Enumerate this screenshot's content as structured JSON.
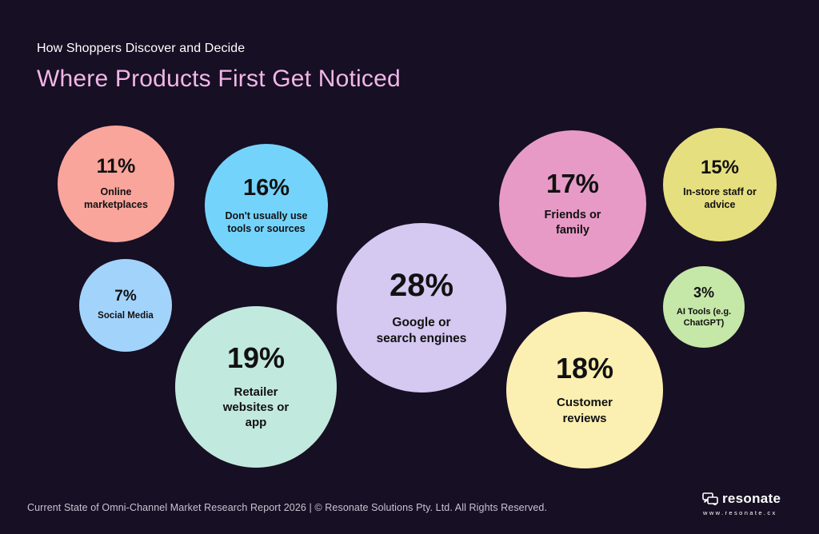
{
  "header": {
    "subtitle": "How Shoppers Discover and Decide",
    "title": "Where Products First Get Noticed"
  },
  "colors": {
    "background": "#170f24",
    "title": "#f1b6e8",
    "online_marketplaces": "#f9a59c",
    "dont_use": "#74d3fb",
    "social_media": "#a2d3fb",
    "retailer": "#c2e9dd",
    "google": "#d5c8f1",
    "friends": "#e89ac7",
    "in_store": "#e6df7f",
    "ai_tools": "#c5e7a8",
    "reviews": "#fbefb1"
  },
  "chart_data": {
    "type": "bubble",
    "title": "Where Products First Get Noticed",
    "subtitle": "How Shoppers Discover and Decide",
    "unit": "%",
    "items": [
      {
        "label": "Online marketplaces",
        "value": 11,
        "value_text": "11%",
        "label_lines": [
          "Online",
          "marketplaces"
        ],
        "color": "#f9a59c"
      },
      {
        "label": "Don't usually use tools or sources",
        "value": 16,
        "value_text": "16%",
        "label_lines": [
          "Don't usually use",
          "tools or sources"
        ],
        "color": "#74d3fb"
      },
      {
        "label": "Social Media",
        "value": 7,
        "value_text": "7%",
        "label_lines": [
          "Social Media"
        ],
        "color": "#a2d3fb"
      },
      {
        "label": "Retailer websites or app",
        "value": 19,
        "value_text": "19%",
        "label_lines": [
          "Retailer",
          "websites or",
          "app"
        ],
        "color": "#c2e9dd"
      },
      {
        "label": "Google or search engines",
        "value": 28,
        "value_text": "28%",
        "label_lines": [
          "Google or",
          "search engines"
        ],
        "color": "#d5c8f1"
      },
      {
        "label": "Friends or family",
        "value": 17,
        "value_text": "17%",
        "label_lines": [
          "Friends or",
          "family"
        ],
        "color": "#e89ac7"
      },
      {
        "label": "In-store staff or advice",
        "value": 15,
        "value_text": "15%",
        "label_lines": [
          "In-store staff or",
          "advice"
        ],
        "color": "#e6df7f"
      },
      {
        "label": "AI Tools (e.g. ChatGPT)",
        "value": 3,
        "value_text": "3%",
        "label_lines": [
          "AI Tools (e.g.",
          "ChatGPT)"
        ],
        "color": "#c5e7a8"
      },
      {
        "label": "Customer reviews",
        "value": 18,
        "value_text": "18%",
        "label_lines": [
          "Customer",
          "reviews"
        ],
        "color": "#fbefb1"
      }
    ]
  },
  "footer": {
    "text": "Current State of Omni-Channel Market Research Report 2026 | © Resonate Solutions Pty. Ltd. All Rights Reserved."
  },
  "logo": {
    "name": "resonate",
    "url": "www.resonate.cx",
    "icon": "speech-bubbles-icon"
  }
}
